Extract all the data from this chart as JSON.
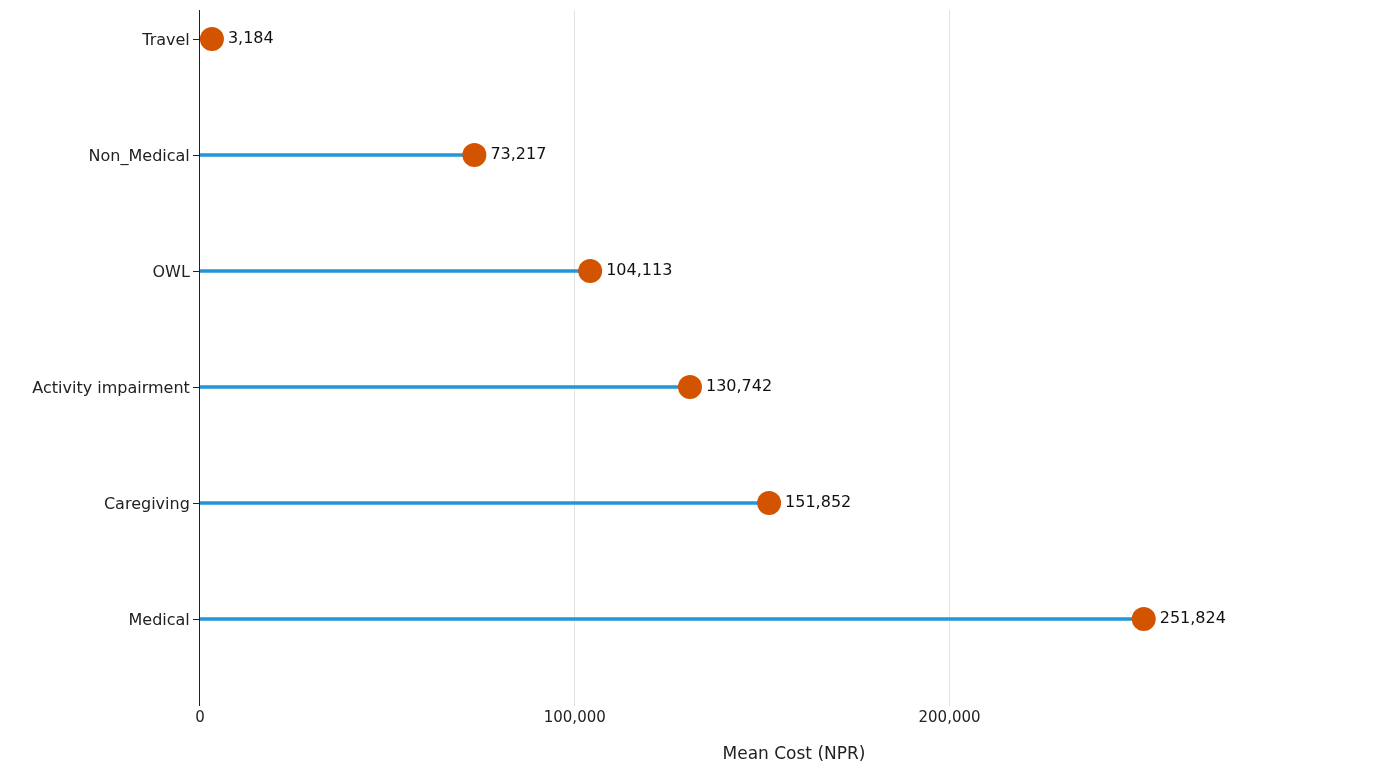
{
  "chart_data": {
    "type": "lollipop",
    "orientation": "horizontal",
    "xlabel": "Mean Cost (NPR)",
    "categories": [
      "Travel",
      "Non_Medical",
      "OWL",
      "Activity impairment",
      "Caregiving",
      "Medical"
    ],
    "series": [
      {
        "color": "#2196d9",
        "colors": [
          "#d35400",
          "#d35400",
          "#d35400",
          "#d35400",
          "#d35400",
          "#d35400"
        ],
        "values": [
          3184,
          73217,
          104113,
          130742,
          151852,
          251824
        ],
        "value_labels": [
          "3,184",
          "73,217",
          "104,113",
          "130,742",
          "151,852",
          "251,824"
        ]
      }
    ],
    "xlim": [
      0,
      317000
    ],
    "xticks": [
      0,
      {
        "value": 100000,
        "label": "100,000"
      },
      {
        "value": 200000,
        "label": "200,000"
      }
    ],
    "grid": "x",
    "marker": "circle"
  }
}
